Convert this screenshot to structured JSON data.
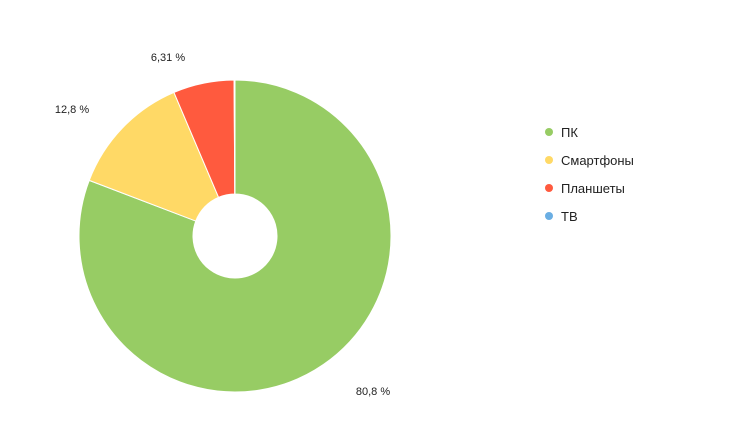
{
  "chart_data": {
    "type": "pie",
    "variant": "donut",
    "categories": [
      "ПК",
      "Смартфоны",
      "Планшеты",
      "ТВ"
    ],
    "values": [
      80.8,
      12.8,
      6.31,
      0.09
    ],
    "value_labels": [
      "80,8 %",
      "12,8 %",
      "6,31 %",
      ""
    ],
    "colors": [
      "#97cc64",
      "#ffd966",
      "#ff5a3e",
      "#6aaee3"
    ],
    "title": "",
    "legend_position": "right",
    "start_angle": "top",
    "direction": "clockwise"
  },
  "legend": {
    "items": [
      {
        "label": "ПК",
        "color": "#97cc64"
      },
      {
        "label": "Смартфоны",
        "color": "#ffd966"
      },
      {
        "label": "Планшеты",
        "color": "#ff5a3e"
      },
      {
        "label": "ТВ",
        "color": "#6aaee3"
      }
    ]
  }
}
